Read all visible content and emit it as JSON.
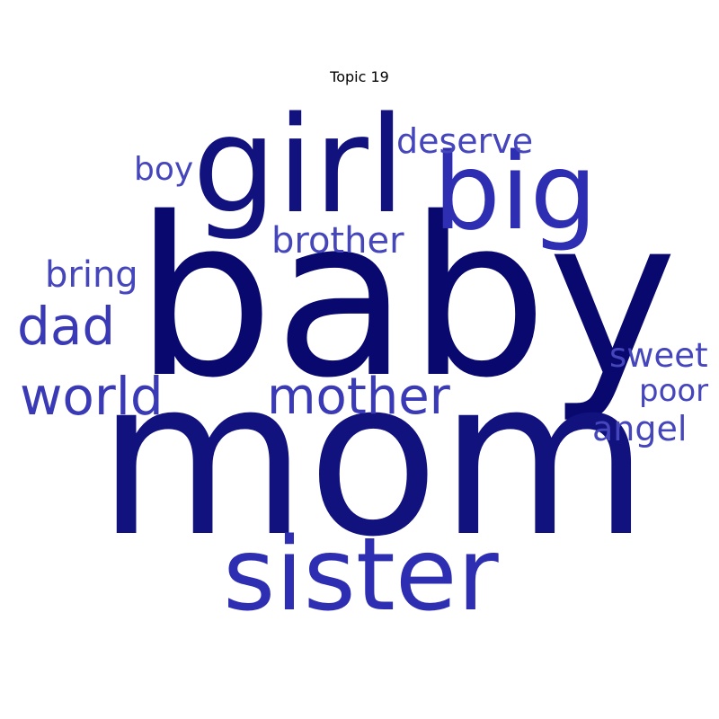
{
  "title": "Topic 19",
  "colors": {
    "darkest": "#08086e",
    "dark": "#12127f",
    "medium": "#2e2eb2",
    "light": "#3a3ab6",
    "lighter": "#4545bc"
  },
  "words": [
    {
      "text": "baby"
    },
    {
      "text": "mom"
    },
    {
      "text": "girl"
    },
    {
      "text": "big"
    },
    {
      "text": "sister"
    },
    {
      "text": "mother"
    },
    {
      "text": "world"
    },
    {
      "text": "dad"
    },
    {
      "text": "brother"
    },
    {
      "text": "deserve"
    },
    {
      "text": "boy"
    },
    {
      "text": "bring"
    },
    {
      "text": "sweet"
    },
    {
      "text": "poor"
    },
    {
      "text": "angel"
    }
  ]
}
